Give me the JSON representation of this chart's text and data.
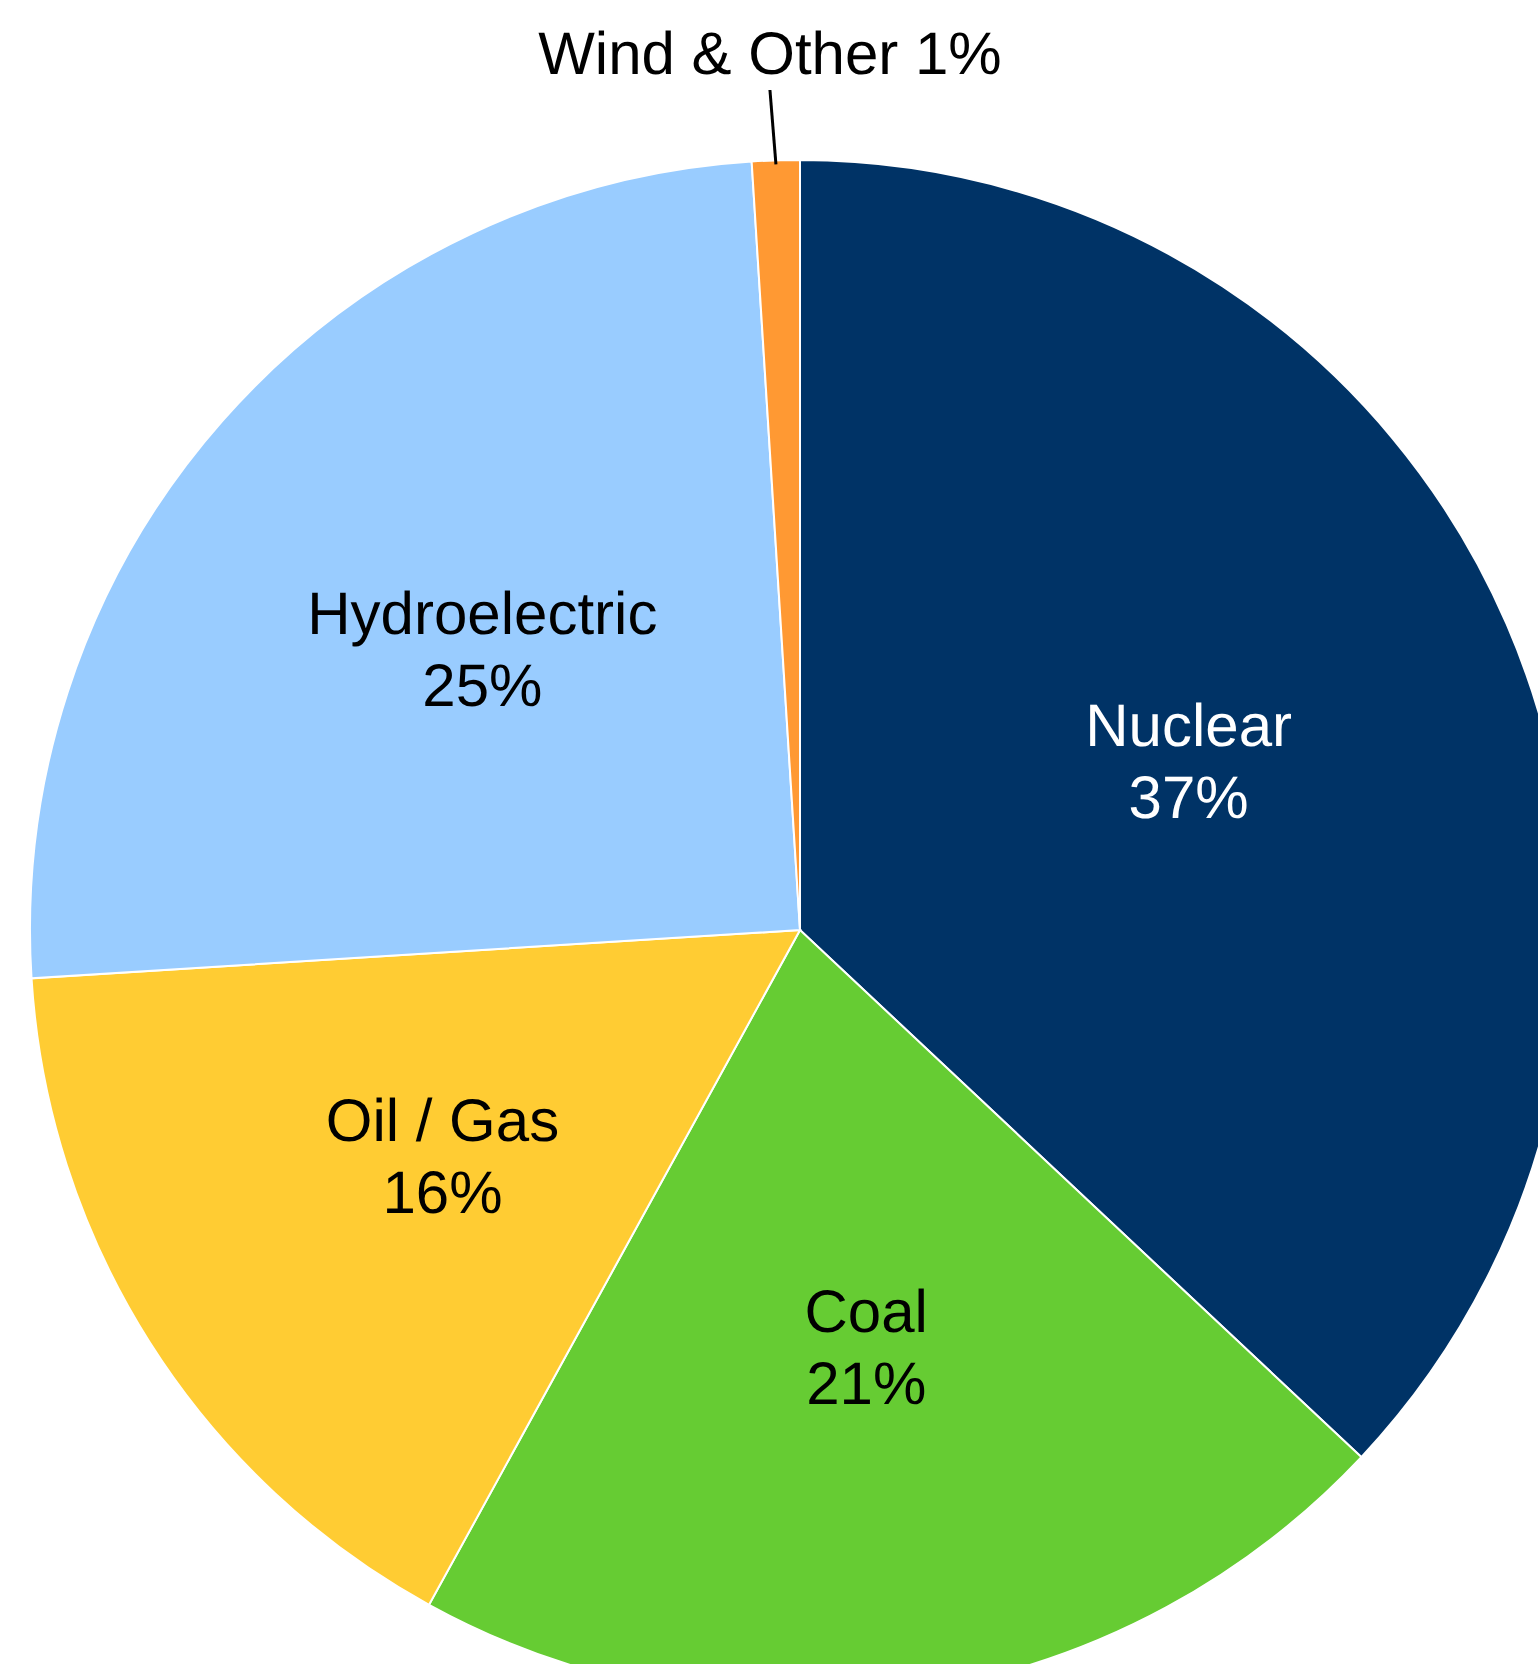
{
  "chart_data": {
    "type": "pie",
    "categories": [
      "Nuclear",
      "Coal",
      "Oil / Gas",
      "Hydroelectric",
      "Wind & Other"
    ],
    "values": [
      37,
      21,
      16,
      25,
      1
    ],
    "colors": [
      "#003366",
      "#66cc33",
      "#ffcc33",
      "#99ccff",
      "#ff9933"
    ],
    "value_labels": [
      "37%",
      "21%",
      "16%",
      "25%",
      "1%"
    ]
  }
}
